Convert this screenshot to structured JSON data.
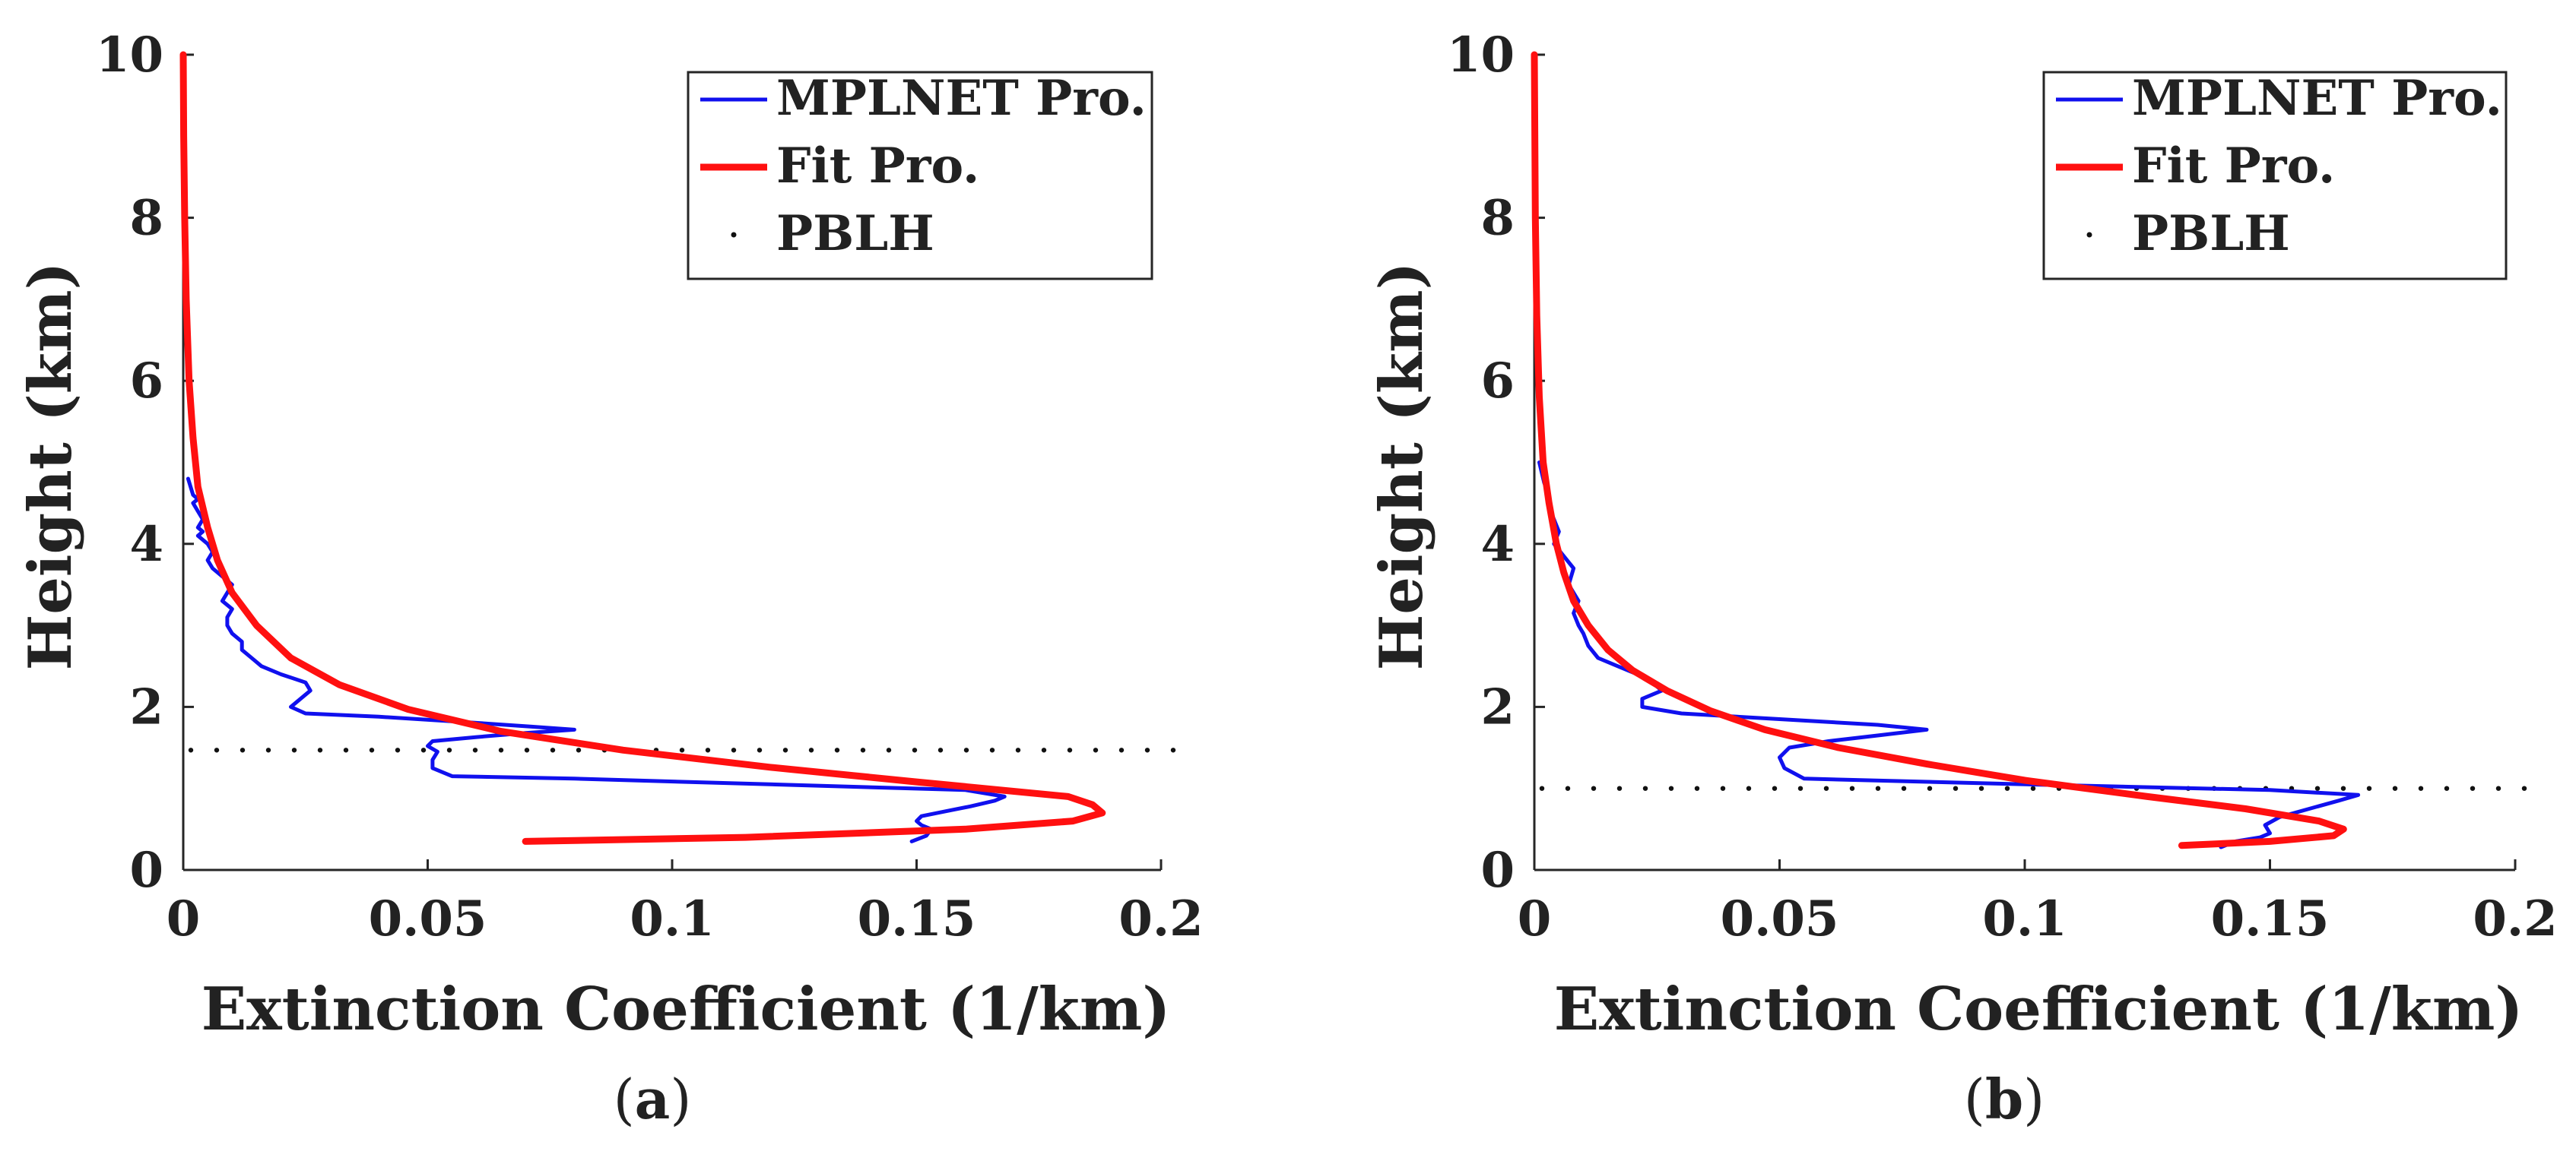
{
  "chart_data": [
    {
      "type": "line",
      "panel_label": "a",
      "xlabel": "Extinction Coefficient (1/km)",
      "ylabel": "Height (km)",
      "xlim": [
        0,
        0.2
      ],
      "ylim": [
        0,
        10
      ],
      "xticks": [
        "0",
        "0.05",
        "0.1",
        "0.15",
        "0.2"
      ],
      "yticks": [
        "0",
        "2",
        "4",
        "6",
        "8",
        "10"
      ],
      "grid": false,
      "legend_position": "top-right",
      "legend": [
        "MPLNET Pro.",
        "Fit Pro.",
        "PBLH"
      ],
      "series": [
        {
          "name": "MPLNET Pro.",
          "color": "#1010ee",
          "x": [
            0.149,
            0.152,
            0.153,
            0.151,
            0.15,
            0.151,
            0.156,
            0.161,
            0.166,
            0.168,
            0.16,
            0.12,
            0.08,
            0.055,
            0.051,
            0.051,
            0.052,
            0.05,
            0.051,
            0.06,
            0.07,
            0.08,
            0.071,
            0.056,
            0.04,
            0.025,
            0.022,
            0.024,
            0.026,
            0.025,
            0.02,
            0.016,
            0.014,
            0.012,
            0.012,
            0.01,
            0.009,
            0.009,
            0.01,
            0.008,
            0.009,
            0.01,
            0.008,
            0.006,
            0.005,
            0.006,
            0.005,
            0.003,
            0.004,
            0.003,
            0.004,
            0.003,
            0.002,
            0.003,
            0.002,
            0.001
          ],
          "y": [
            0.35,
            0.42,
            0.5,
            0.55,
            0.6,
            0.66,
            0.72,
            0.78,
            0.85,
            0.9,
            0.98,
            1.05,
            1.12,
            1.15,
            1.25,
            1.35,
            1.45,
            1.52,
            1.58,
            1.63,
            1.68,
            1.72,
            1.76,
            1.82,
            1.88,
            1.92,
            2.0,
            2.1,
            2.2,
            2.3,
            2.4,
            2.5,
            2.6,
            2.7,
            2.8,
            2.9,
            3.0,
            3.1,
            3.2,
            3.3,
            3.4,
            3.5,
            3.6,
            3.7,
            3.8,
            3.9,
            4.0,
            4.1,
            4.15,
            4.2,
            4.3,
            4.4,
            4.5,
            4.55,
            4.6,
            4.8
          ]
        },
        {
          "name": "Fit Pro.",
          "color": "#ff1010",
          "x": [
            0.07,
            0.115,
            0.16,
            0.182,
            0.188,
            0.186,
            0.181,
            0.15,
            0.12,
            0.09,
            0.065,
            0.046,
            0.032,
            0.022,
            0.015,
            0.01,
            0.007,
            0.005,
            0.003,
            0.002,
            0.0012,
            0.0006,
            0.0003,
            0.0001,
            0.0
          ],
          "y": [
            0.35,
            0.4,
            0.5,
            0.6,
            0.7,
            0.8,
            0.9,
            1.08,
            1.26,
            1.47,
            1.7,
            1.97,
            2.27,
            2.6,
            3.0,
            3.4,
            3.8,
            4.2,
            4.7,
            5.3,
            6.0,
            7.0,
            8.0,
            9.0,
            10.0
          ]
        }
      ],
      "pblh_km": 1.47
    },
    {
      "type": "line",
      "panel_label": "b",
      "xlabel": "Extinction Coefficient (1/km)",
      "ylabel": "Height (km)",
      "xlim": [
        0,
        0.2
      ],
      "ylim": [
        0,
        10
      ],
      "xticks": [
        "0",
        "0.05",
        "0.1",
        "0.15",
        "0.2"
      ],
      "yticks": [
        "0",
        "2",
        "4",
        "6",
        "8",
        "10"
      ],
      "grid": false,
      "legend_position": "top-right",
      "legend": [
        "MPLNET Pro.",
        "Fit Pro.",
        "PBLH"
      ],
      "series": [
        {
          "name": "MPLNET Pro.",
          "color": "#1010ee",
          "x": [
            0.14,
            0.143,
            0.148,
            0.15,
            0.149,
            0.152,
            0.158,
            0.164,
            0.168,
            0.15,
            0.1,
            0.055,
            0.051,
            0.05,
            0.052,
            0.06,
            0.07,
            0.08,
            0.07,
            0.05,
            0.03,
            0.022,
            0.022,
            0.026,
            0.023,
            0.017,
            0.013,
            0.011,
            0.01,
            0.009,
            0.008,
            0.009,
            0.007,
            0.008,
            0.006,
            0.004,
            0.005,
            0.004,
            0.003,
            0.003,
            0.002,
            0.001
          ],
          "y": [
            0.28,
            0.35,
            0.4,
            0.45,
            0.55,
            0.65,
            0.75,
            0.85,
            0.92,
            0.98,
            1.05,
            1.12,
            1.25,
            1.38,
            1.5,
            1.58,
            1.65,
            1.72,
            1.78,
            1.85,
            1.92,
            2.0,
            2.1,
            2.2,
            2.35,
            2.5,
            2.6,
            2.75,
            2.9,
            3.0,
            3.15,
            3.3,
            3.5,
            3.7,
            3.85,
            4.0,
            4.15,
            4.3,
            4.45,
            4.6,
            4.75,
            5.0
          ]
        },
        {
          "name": "Fit Pro.",
          "color": "#ff1010",
          "x": [
            0.132,
            0.15,
            0.163,
            0.165,
            0.16,
            0.145,
            0.125,
            0.1,
            0.08,
            0.062,
            0.047,
            0.036,
            0.027,
            0.02,
            0.015,
            0.011,
            0.008,
            0.006,
            0.0045,
            0.003,
            0.0018,
            0.001,
            0.0005,
            0.0002,
            0.0
          ],
          "y": [
            0.3,
            0.35,
            0.42,
            0.5,
            0.6,
            0.75,
            0.9,
            1.1,
            1.3,
            1.5,
            1.72,
            1.95,
            2.2,
            2.45,
            2.7,
            3.0,
            3.3,
            3.65,
            4.0,
            4.5,
            5.0,
            5.8,
            6.8,
            8.0,
            10.0
          ]
        }
      ],
      "pblh_km": 1.0
    }
  ]
}
